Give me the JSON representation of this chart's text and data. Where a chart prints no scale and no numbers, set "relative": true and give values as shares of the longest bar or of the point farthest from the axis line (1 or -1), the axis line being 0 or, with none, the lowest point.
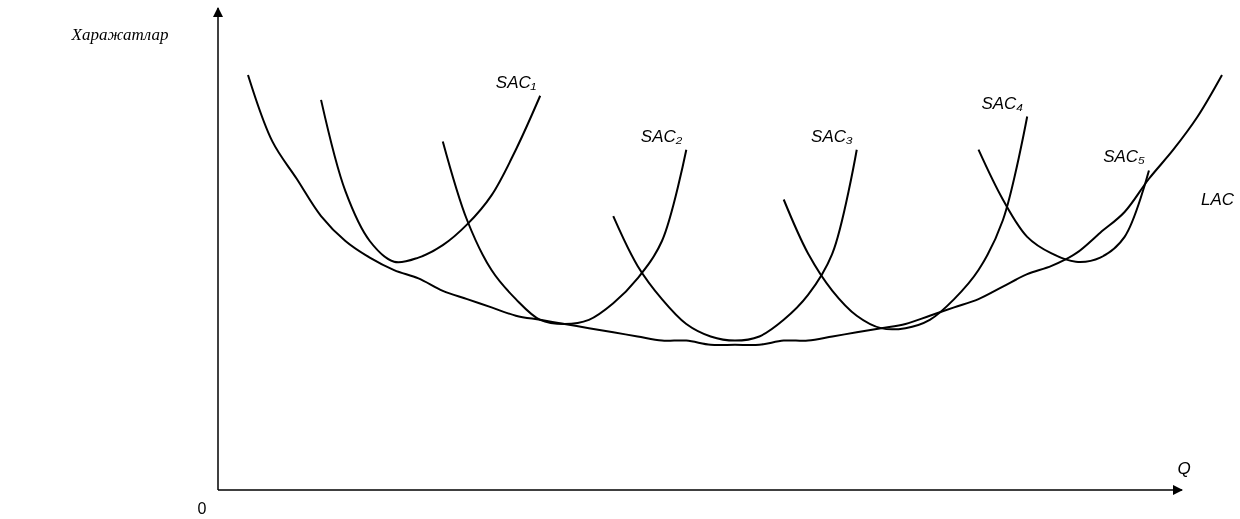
{
  "chart_data": {
    "type": "line",
    "relative": true,
    "legend": false,
    "ylabel": "Харажатлар",
    "xlabel": "Q",
    "annotations": [
      "0"
    ],
    "categories": [
      null,
      null,
      null,
      null,
      null,
      null,
      null,
      null,
      null,
      null,
      null,
      null,
      null,
      null,
      null,
      null,
      null,
      null,
      null,
      null,
      null,
      null,
      null,
      null,
      null,
      null,
      null,
      null,
      null,
      null,
      null,
      null,
      null,
      null,
      null,
      null,
      null,
      null,
      null,
      null,
      null
    ],
    "series": [
      {
        "name": "SAC₁",
        "color": "#000000",
        "values": [
          null,
          null,
          null,
          0.94,
          0.72,
          0.6,
          0.55,
          0.56,
          0.59,
          0.64,
          0.71,
          0.82,
          0.95,
          null,
          null,
          null,
          null,
          null,
          null,
          null,
          null,
          null,
          null,
          null,
          null,
          null,
          null,
          null,
          null,
          null,
          null,
          null,
          null,
          null,
          null,
          null,
          null,
          null,
          null,
          null,
          null
        ]
      },
      {
        "name": "SAC₂",
        "color": "#000000",
        "values": [
          null,
          null,
          null,
          null,
          null,
          null,
          null,
          null,
          0.84,
          0.65,
          0.53,
          0.46,
          0.41,
          0.4,
          0.41,
          0.45,
          0.51,
          0.6,
          0.82,
          null,
          null,
          null,
          null,
          null,
          null,
          null,
          null,
          null,
          null,
          null,
          null,
          null,
          null,
          null,
          null,
          null,
          null,
          null,
          null,
          null,
          null
        ]
      },
      {
        "name": "SAC₃",
        "color": "#000000",
        "values": [
          null,
          null,
          null,
          null,
          null,
          null,
          null,
          null,
          null,
          null,
          null,
          null,
          null,
          null,
          null,
          0.66,
          0.54,
          0.46,
          0.4,
          0.37,
          0.36,
          0.37,
          0.41,
          0.47,
          0.57,
          0.82,
          null,
          null,
          null,
          null,
          null,
          null,
          null,
          null,
          null,
          null,
          null,
          null,
          null,
          null,
          null
        ]
      },
      {
        "name": "SAC₄",
        "color": "#000000",
        "values": [
          null,
          null,
          null,
          null,
          null,
          null,
          null,
          null,
          null,
          null,
          null,
          null,
          null,
          null,
          null,
          null,
          null,
          null,
          null,
          null,
          null,
          null,
          0.7,
          0.57,
          0.48,
          0.42,
          0.39,
          0.39,
          0.41,
          0.46,
          0.53,
          0.65,
          0.9,
          null,
          null,
          null,
          null,
          null,
          null,
          null,
          null
        ]
      },
      {
        "name": "SAC₅",
        "color": "#000000",
        "values": [
          null,
          null,
          null,
          null,
          null,
          null,
          null,
          null,
          null,
          null,
          null,
          null,
          null,
          null,
          null,
          null,
          null,
          null,
          null,
          null,
          null,
          null,
          null,
          null,
          null,
          null,
          null,
          null,
          null,
          null,
          0.82,
          0.7,
          0.61,
          0.57,
          0.55,
          0.56,
          0.61,
          0.77,
          null,
          null,
          null
        ]
      },
      {
        "name": "LAC",
        "color": "#000000",
        "values": [
          1,
          0.84,
          0.75,
          0.66,
          0.6,
          0.56,
          0.53,
          0.51,
          0.48,
          0.46,
          0.44,
          0.42,
          0.41,
          0.4,
          0.39,
          0.38,
          0.37,
          0.36,
          0.36,
          0.35,
          0.35,
          0.35,
          0.36,
          0.36,
          0.37,
          0.38,
          0.39,
          0.4,
          0.42,
          0.44,
          0.46,
          0.49,
          0.52,
          0.54,
          0.57,
          0.62,
          0.67,
          0.75,
          0.82,
          0.9,
          1
        ]
      }
    ]
  }
}
